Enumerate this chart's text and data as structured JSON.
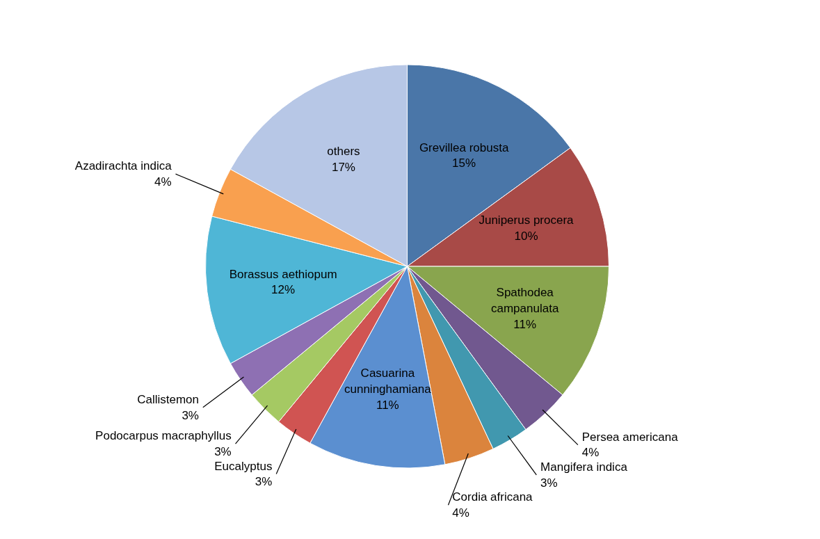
{
  "chart_data": {
    "type": "pie",
    "categories": [
      "Grevillea robusta",
      "Juniperus procera",
      "Spathodea campanulata",
      "Persea americana",
      "Mangifera indica",
      "Cordia africana",
      "Casuarina cunninghamiana",
      "Eucalyptus",
      "Podocarpus macraphyllus",
      "Callistemon",
      "Borassus aethiopum",
      "Azadirachta indica",
      "others"
    ],
    "values": [
      15,
      10,
      11,
      4,
      3,
      4,
      11,
      3,
      3,
      3,
      12,
      4,
      17
    ],
    "value_labels": [
      "15%",
      "10%",
      "11%",
      "4%",
      "3%",
      "4%",
      "11%",
      "3%",
      "3%",
      "3%",
      "12%",
      "4%",
      "17%"
    ],
    "colors": [
      "#4a76a8",
      "#a84a47",
      "#89a54e",
      "#71588f",
      "#4198af",
      "#db843d",
      "#5b8fd0",
      "#d05452",
      "#a5c963",
      "#8e70b3",
      "#4fb6d6",
      "#f9a04f",
      "#b7c7e6"
    ],
    "legend": false
  }
}
